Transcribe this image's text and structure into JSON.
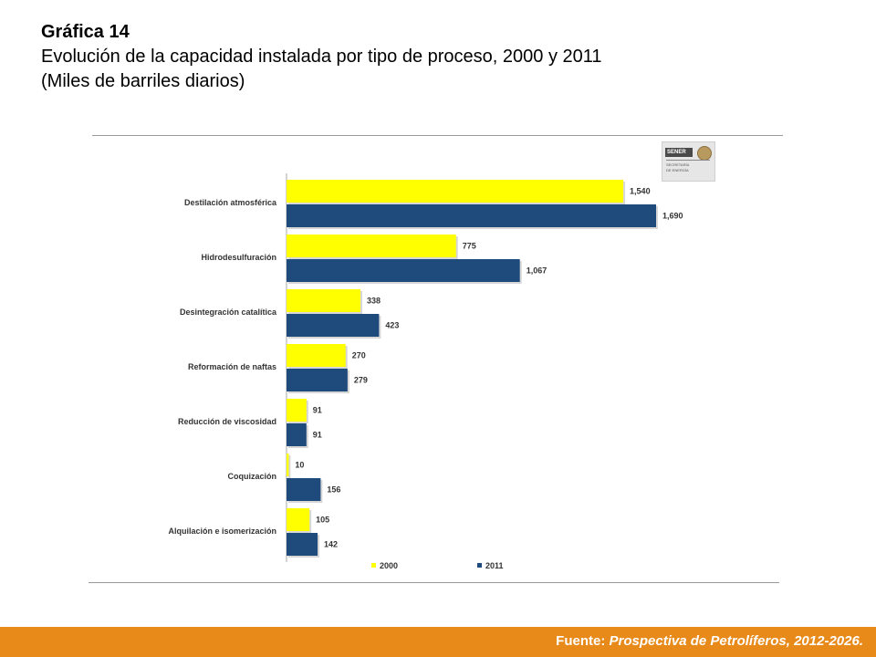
{
  "header": {
    "label": "Gráfica 14",
    "title": "Evolución de la capacidad instalada por tipo de proceso, 2000 y 2011",
    "subtitle": "(Miles de barriles diarios)"
  },
  "logo": {
    "brand": "SENER",
    "subtext": "SECRETARÍA DE ENERGÍA"
  },
  "footer": {
    "prefix": "Fuente: ",
    "source": "Prospectiva de Petrolíferos, 2012-2026."
  },
  "chart_data": {
    "type": "bar",
    "orientation": "horizontal",
    "categories": [
      "Destilación atmosférica",
      "Hidrodesulfuración",
      "Desintegración catalítica",
      "Reformación de naftas",
      "Reducción de viscosidad",
      "Coquización",
      "Alquilación e isomerización"
    ],
    "series": [
      {
        "name": "2000",
        "values": [
          1540,
          775,
          338,
          270,
          91,
          10,
          105
        ],
        "labels": [
          "1,540",
          "775",
          "338",
          "270",
          "91",
          "10",
          "105"
        ]
      },
      {
        "name": "2011",
        "values": [
          1690,
          1067,
          423,
          279,
          91,
          156,
          142
        ],
        "labels": [
          "1,690",
          "1,067",
          "423",
          "279",
          "91",
          "156",
          "142"
        ]
      }
    ],
    "colors": {
      "2000": "#ffff00",
      "2011": "#1f4a7c"
    },
    "xlim": [
      0,
      1690
    ],
    "grid": false,
    "legend": "bottom"
  }
}
